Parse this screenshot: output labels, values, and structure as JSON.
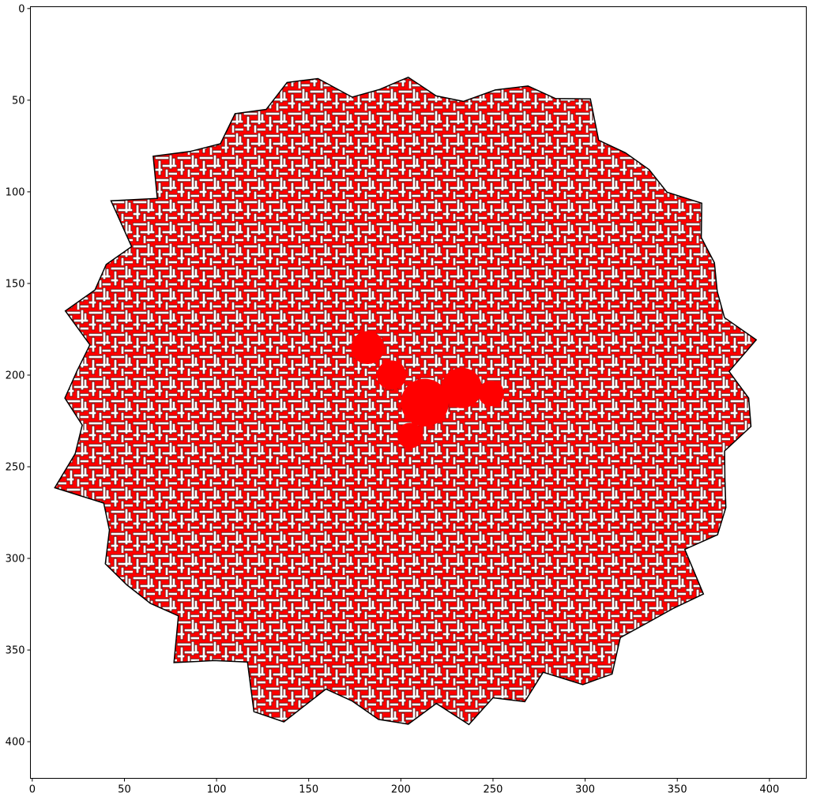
{
  "chart_data": {
    "type": "image",
    "title": "",
    "xlabel": "",
    "ylabel": "",
    "xlim": [
      -1,
      420
    ],
    "ylim": [
      420,
      -1
    ],
    "y_inverted": true,
    "grid": false,
    "legend": "none",
    "colors": {
      "fill": "#ff0000",
      "edge": "#000000",
      "background": "#ffffff"
    },
    "x_ticks": [
      0,
      50,
      100,
      150,
      200,
      250,
      300,
      350,
      400
    ],
    "x_tick_labels": [
      "0",
      "50",
      "100",
      "150",
      "200",
      "250",
      "300",
      "350",
      "400"
    ],
    "y_ticks": [
      0,
      50,
      100,
      150,
      200,
      250,
      300,
      350,
      400
    ],
    "y_tick_labels": [
      "0",
      "50",
      "100",
      "150",
      "200",
      "250",
      "300",
      "350",
      "400"
    ],
    "cluster": {
      "description": "red branching maze-like aggregate with black outlines",
      "extent_x": [
        1,
        407
      ],
      "extent_y": [
        19,
        406
      ],
      "dense_core": [
        {
          "x": 182,
          "y": 185,
          "r": 9
        },
        {
          "x": 195,
          "y": 200,
          "r": 8
        },
        {
          "x": 213,
          "y": 215,
          "r": 13
        },
        {
          "x": 233,
          "y": 207,
          "r": 11
        },
        {
          "x": 249,
          "y": 210,
          "r": 7
        },
        {
          "x": 205,
          "y": 233,
          "r": 7
        }
      ]
    }
  }
}
